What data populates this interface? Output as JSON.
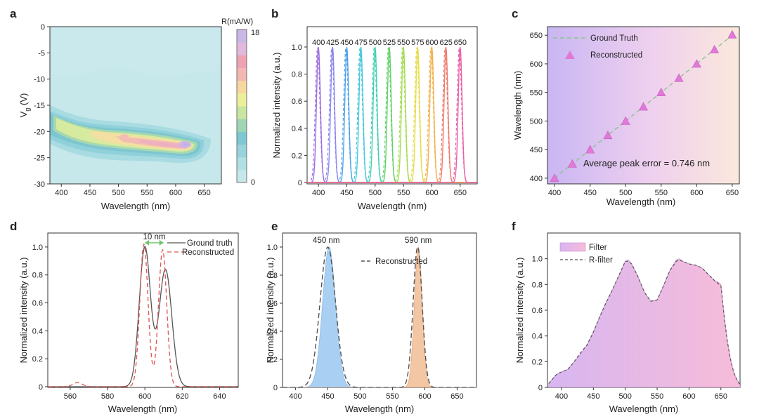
{
  "panels": {
    "a": "a",
    "b": "b",
    "c": "c",
    "d": "d",
    "e": "e",
    "f": "f"
  },
  "chart_data": [
    {
      "id": "a",
      "type": "heatmap",
      "xlabel": "Wavelength (nm)",
      "ylabel_main": "V",
      "ylabel_sub": "g",
      "ylabel_tail": " (V)",
      "xlim": [
        380,
        680
      ],
      "ylim": [
        -30,
        0
      ],
      "xticks": [
        400,
        450,
        500,
        550,
        600,
        650
      ],
      "yticks": [
        0,
        -5,
        -10,
        -15,
        -20,
        -25,
        -30
      ],
      "colorbar": {
        "title": "R(mA/W)",
        "min_label": "0",
        "max_label": "18",
        "min": 0,
        "max": 18,
        "colors": [
          "#c6e8ea",
          "#b0dfe4",
          "#98d3dc",
          "#7fc7d2",
          "#9fd6b6",
          "#c9e6a0",
          "#ecef9a",
          "#f5d8a0",
          "#f4b8b3",
          "#eda3b4",
          "#e0b9dc",
          "#c9b8e6"
        ]
      },
      "hotspot": {
        "wavelength_peak": 620,
        "vg_peak": -22.5,
        "max_value": 18
      }
    },
    {
      "id": "b",
      "type": "line",
      "xlabel": "Wavelength (nm)",
      "ylabel": "Normalized intensity (a.u.)",
      "xlim": [
        380,
        680
      ],
      "ylim": [
        0,
        1.15
      ],
      "xticks": [
        400,
        450,
        500,
        550,
        600,
        650
      ],
      "yticks": [
        "0",
        "0.2",
        "0.4",
        "0.6",
        "0.8",
        "1.0"
      ],
      "peaks": [
        400,
        425,
        450,
        475,
        500,
        525,
        550,
        575,
        600,
        625,
        650
      ],
      "peak_labels": [
        "400",
        "425",
        "450",
        "475",
        "500",
        "525",
        "550",
        "575",
        "600",
        "625",
        "650"
      ],
      "colors": [
        "#9b6fe0",
        "#8b86f0",
        "#4fa3ec",
        "#45c8dc",
        "#3fd0b4",
        "#5fd266",
        "#a2dc4f",
        "#e6dc4a",
        "#f3b04a",
        "#f07a6a",
        "#ea5fa6"
      ],
      "fwhm_nm": 8
    },
    {
      "id": "c",
      "type": "scatter",
      "xlabel": "Wavelength (nm)",
      "ylabel": "Wavelength (nm)",
      "xlim": [
        390,
        660
      ],
      "ylim": [
        390,
        665
      ],
      "xticks": [
        400,
        450,
        500,
        550,
        600,
        650
      ],
      "yticks": [
        400,
        450,
        500,
        550,
        600,
        650
      ],
      "series": [
        {
          "name": "Ground Truth",
          "style": "dashed-line",
          "x": [
            400,
            650
          ],
          "y": [
            400,
            650
          ]
        },
        {
          "name": "Reconstructed",
          "style": "triangle",
          "x": [
            400,
            425,
            450,
            475,
            500,
            525,
            550,
            575,
            600,
            625,
            650
          ],
          "y": [
            400,
            425,
            450,
            475,
            500,
            525,
            550,
            575,
            600,
            625,
            651
          ]
        }
      ],
      "annotation": "Average peak error = 0.746 nm"
    },
    {
      "id": "d",
      "type": "line",
      "xlabel": "Wavelength (nm)",
      "ylabel": "Normalized intensity (a.u.)",
      "xlim": [
        548,
        650
      ],
      "ylim": [
        0,
        1.1
      ],
      "xticks": [
        560,
        580,
        600,
        620,
        640
      ],
      "yticks": [
        "0",
        "0.2",
        "0.4",
        "0.6",
        "0.8",
        "1.0"
      ],
      "series": [
        {
          "name": "Ground truth",
          "style": "solid",
          "peaks": [
            {
              "c": 600,
              "a": 1.0,
              "w": 3.0
            },
            {
              "c": 611,
              "a": 0.84,
              "w": 3.4
            }
          ]
        },
        {
          "name": "Reconstructed",
          "style": "dashed",
          "peaks": [
            {
              "c": 599.5,
              "a": 1.02,
              "w": 2.2
            },
            {
              "c": 609.5,
              "a": 0.98,
              "w": 2.2
            },
            {
              "c": 564,
              "a": 0.03,
              "w": 2.5
            }
          ]
        }
      ],
      "annotation": "10 nm",
      "annotation_x": [
        600,
        610
      ]
    },
    {
      "id": "e",
      "type": "area",
      "xlabel": "Wavelength (nm)",
      "ylabel": "Normalized intensity (a.u.)",
      "xlim": [
        380,
        680
      ],
      "ylim": [
        0,
        1.1
      ],
      "xticks": [
        400,
        450,
        500,
        550,
        600,
        650
      ],
      "yticks": [
        "0",
        "0.2",
        "0.4",
        "0.6",
        "0.8",
        "1.0"
      ],
      "series": [
        {
          "name": "450 nm",
          "center": 452,
          "sigma": 10,
          "color": "#a9d0f2"
        },
        {
          "name": "590 nm",
          "center": 590,
          "sigma": 6,
          "color": "#f3c7a4"
        },
        {
          "name": "Reconstructed",
          "style": "dashed",
          "peaks": [
            {
              "c": 450,
              "s": 12
            },
            {
              "c": 589,
              "s": 7
            }
          ]
        }
      ],
      "peak_labels": [
        "450 nm",
        "590 nm"
      ]
    },
    {
      "id": "f",
      "type": "area",
      "xlabel": "Wavelength (nm)",
      "ylabel": "Normalized intensity (a.u.)",
      "xlim": [
        378,
        680
      ],
      "ylim": [
        0,
        1.2
      ],
      "xticks": [
        400,
        450,
        500,
        550,
        600,
        650
      ],
      "yticks": [
        "0",
        "0.2",
        "0.4",
        "0.6",
        "0.8",
        "1.0"
      ],
      "x": [
        380,
        385,
        390,
        395,
        400,
        410,
        420,
        430,
        440,
        450,
        460,
        470,
        480,
        490,
        500,
        505,
        510,
        520,
        530,
        540,
        550,
        560,
        570,
        580,
        585,
        590,
        600,
        610,
        620,
        630,
        640,
        645,
        650,
        655,
        660,
        665,
        670,
        675,
        680
      ],
      "series": [
        {
          "name": "Filter",
          "values": [
            0.03,
            0.06,
            0.09,
            0.11,
            0.12,
            0.14,
            0.2,
            0.26,
            0.33,
            0.43,
            0.55,
            0.66,
            0.76,
            0.87,
            0.98,
            0.99,
            0.96,
            0.86,
            0.74,
            0.67,
            0.68,
            0.79,
            0.91,
            0.99,
            1.0,
            0.98,
            0.96,
            0.95,
            0.93,
            0.88,
            0.83,
            0.82,
            0.8,
            0.56,
            0.36,
            0.22,
            0.12,
            0.06,
            0.02
          ]
        },
        {
          "name": "R-filter",
          "values": [
            0.03,
            0.06,
            0.09,
            0.11,
            0.12,
            0.14,
            0.2,
            0.27,
            0.33,
            0.43,
            0.55,
            0.66,
            0.76,
            0.87,
            0.98,
            0.98,
            0.96,
            0.86,
            0.74,
            0.67,
            0.68,
            0.79,
            0.91,
            0.98,
            0.99,
            0.98,
            0.96,
            0.95,
            0.93,
            0.88,
            0.83,
            0.81,
            0.79,
            0.56,
            0.36,
            0.22,
            0.12,
            0.06,
            0.02
          ]
        }
      ]
    }
  ]
}
